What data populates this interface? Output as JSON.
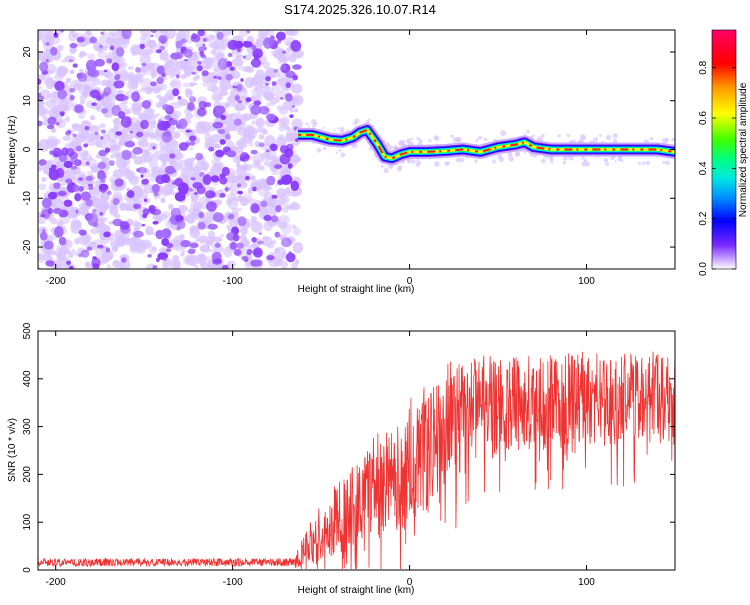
{
  "page_title": "S174.2025.326.10.07.R14",
  "colorbar": {
    "label": "Normalized spectral amplitude",
    "range": [
      0,
      0.95
    ],
    "ticks": [
      "0.0",
      "0.2",
      "0.4",
      "0.6",
      "0.8"
    ],
    "tick_values": [
      0,
      0.2,
      0.4,
      0.6,
      0.8
    ],
    "colors": [
      "#ffffff",
      "#7a2aff",
      "#0000ff",
      "#00c8ff",
      "#00ff80",
      "#40ff00",
      "#ffff00",
      "#ff9900",
      "#ff0000",
      "#ff0066"
    ]
  },
  "chart_data": [
    {
      "type": "heatmap",
      "xlabel": "Height of straight line (km)",
      "ylabel": "Frequency (Hz)",
      "xlim": [
        -210,
        150
      ],
      "ylim": [
        -24.5,
        24.5
      ],
      "xticks": [
        "-200",
        "-100",
        "0",
        "100"
      ],
      "xtick_values": [
        -200,
        -100,
        0,
        100
      ],
      "yticks": [
        "-20",
        "-10",
        "0",
        "10",
        "20"
      ],
      "ytick_values": [
        -20,
        -10,
        0,
        10,
        20
      ],
      "noise_region_x": [
        -210,
        -63
      ],
      "tone_track": {
        "x": [
          -63,
          -55,
          -45,
          -38,
          -32,
          -28,
          -24,
          -18,
          -14,
          -10,
          -5,
          0,
          10,
          20,
          30,
          40,
          50,
          60,
          65,
          70,
          80,
          90,
          100,
          110,
          120,
          130,
          140,
          150
        ],
        "freq": [
          3,
          3,
          2,
          1.8,
          2.5,
          3.5,
          4,
          1,
          -1.5,
          -1.8,
          -1,
          -0.5,
          -0.5,
          -0.3,
          0,
          -0.5,
          0.5,
          1,
          1.5,
          0.5,
          0,
          0,
          0,
          0,
          0,
          0,
          0,
          -0.5
        ],
        "peak_amplitude": 0.9
      }
    },
    {
      "type": "line",
      "xlabel": "Height of straight line (km)",
      "ylabel": "SNR (10 * v/v)",
      "xlim": [
        -210,
        150
      ],
      "ylim": [
        0,
        500
      ],
      "xticks": [
        "-200",
        "-100",
        "0",
        "100"
      ],
      "xtick_values": [
        -200,
        -100,
        0,
        100
      ],
      "yticks": [
        "0",
        "100",
        "200",
        "300",
        "400",
        "500"
      ],
      "ytick_values": [
        0,
        100,
        200,
        300,
        400,
        500
      ],
      "color": "#ee3333",
      "series": [
        {
          "x": [
            -210,
            -180,
            -150,
            -120,
            -90,
            -66,
            -50,
            -40,
            -30,
            -20,
            -10,
            0,
            10,
            20,
            30,
            40,
            60,
            80,
            100,
            120,
            140,
            150
          ],
          "mean": [
            16,
            16,
            16,
            16,
            16,
            16,
            90,
            120,
            150,
            180,
            210,
            240,
            270,
            320,
            340,
            350,
            360,
            360,
            370,
            365,
            370,
            365
          ],
          "noise_spread": [
            12,
            12,
            12,
            12,
            12,
            12,
            60,
            70,
            80,
            100,
            110,
            120,
            130,
            120,
            110,
            100,
            90,
            90,
            90,
            90,
            90,
            90
          ]
        }
      ]
    }
  ]
}
